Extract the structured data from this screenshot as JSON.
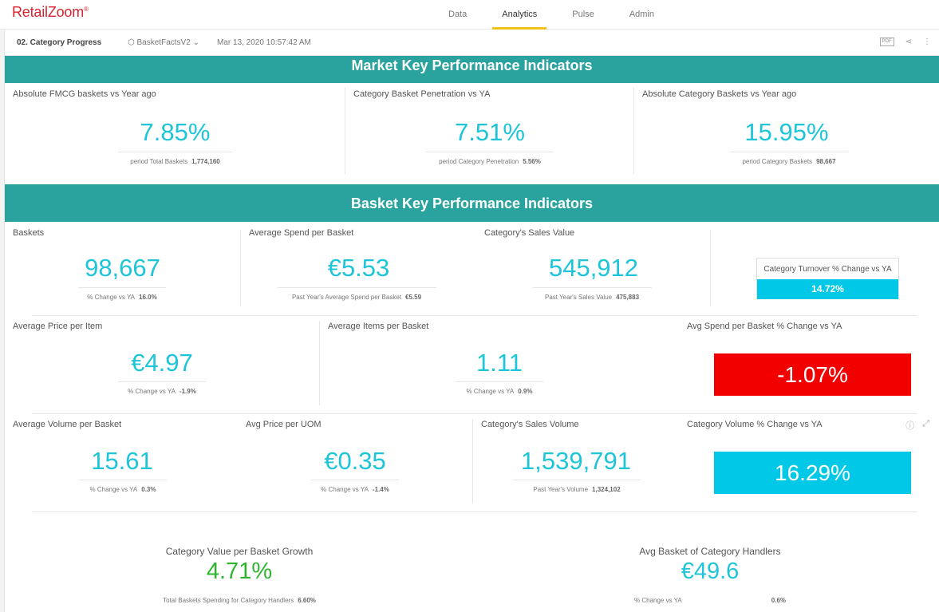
{
  "app": {
    "logo": "RetailZoom",
    "logo_mark": "®"
  },
  "nav": [
    {
      "label": "Data"
    },
    {
      "label": "Analytics"
    },
    {
      "label": "Pulse"
    },
    {
      "label": "Admin"
    }
  ],
  "subbar": {
    "title": "02. Category Progress",
    "dataset": "BasketFactsV2",
    "date": "Mar 13, 2020 10:57:42 AM",
    "pdf": "PDF"
  },
  "sections": {
    "market": "Market Key Performance Indicators",
    "basket": "Basket Key Performance Indicators"
  },
  "market": [
    {
      "title": "Absolute FMCG baskets vs Year ago",
      "value": "7.85%",
      "sub_label": "period Total Baskets",
      "sub_value": "1,774,160"
    },
    {
      "title": "Category Basket Penetration vs YA",
      "value": "7.51%",
      "sub_label": "period Category Penetration",
      "sub_value": "5.56%"
    },
    {
      "title": "Absolute Category Baskets vs Year ago",
      "value": "15.95%",
      "sub_label": "period Category Baskets",
      "sub_value": "98,667"
    }
  ],
  "row1": [
    {
      "title": "Baskets",
      "value": "98,667",
      "sub_label": "% Change vs YA",
      "sub_value": "16.0%"
    },
    {
      "title": "Average Spend per Basket",
      "value": "€5.53",
      "sub_label": "Past Year's Average Spend per Basket",
      "sub_value": "€5.59"
    },
    {
      "title": "Category's Sales Value",
      "value": "545,912",
      "sub_label": "Past Year's Sales Value",
      "sub_value": "475,883"
    }
  ],
  "turnover": {
    "title": "Category Turnover % Change vs YA",
    "value": "14.72%"
  },
  "row2": [
    {
      "title": "Average Price per Item",
      "value": "€4.97",
      "sub_label": "% Change vs YA",
      "sub_value": "-1.9%"
    },
    {
      "title": "Average Items per Basket",
      "value": "1.11",
      "sub_label": "% Change vs YA",
      "sub_value": "0.9%"
    }
  ],
  "avg_spend_change": {
    "title": "Avg Spend per Basket % Change vs YA",
    "value": "-1.07%"
  },
  "row3": [
    {
      "title": "Average Volume per Basket",
      "value": "15.61",
      "sub_label": "% Change vs YA",
      "sub_value": "0.3%"
    },
    {
      "title": "Avg Price per UOM",
      "value": "€0.35",
      "sub_label": "% Change vs YA",
      "sub_value": "-1.4%"
    },
    {
      "title": "Category's Sales Volume",
      "value": "1,539,791",
      "sub_label": "Past Year's Volume",
      "sub_value": "1,324,102"
    }
  ],
  "volume_change": {
    "title": "Category Volume % Change vs YA",
    "value": "16.29%"
  },
  "bottom": [
    {
      "title": "Category Value per Basket Growth",
      "value": "4.71%",
      "sub_label": "Total Baskets Spending for Category Handlers",
      "sub_value": "6.60%"
    },
    {
      "title": "Avg Basket of Category Handlers",
      "value": "€49.6",
      "sub_label": "% Change vs YA",
      "sub_value": "0.6%"
    }
  ],
  "colors": {
    "accent": "#2aa39f",
    "value": "#1ec5d8",
    "negative": "#f20000",
    "positive_box": "#00c8e6",
    "green": "#2db52d",
    "nav_active": "#f2c21a"
  }
}
